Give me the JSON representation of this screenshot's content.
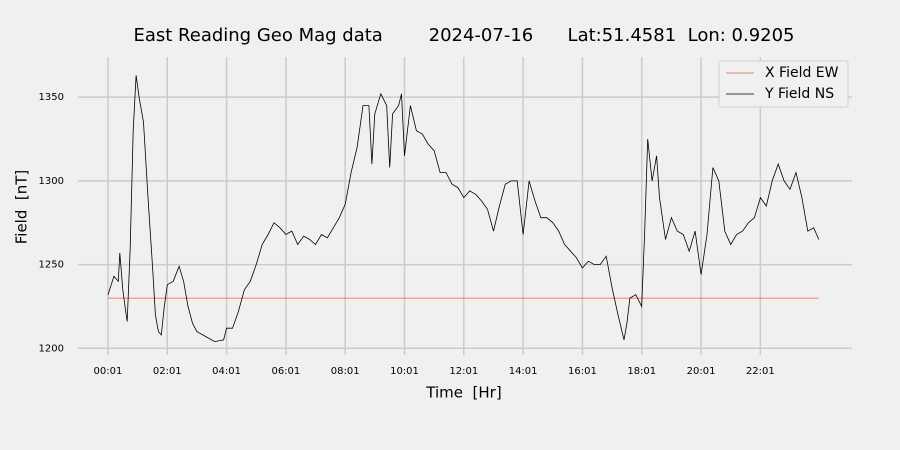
{
  "chart_data": {
    "type": "line",
    "title": "East Reading Geo Mag data        2024-07-16      Lat:51.4581  Lon: 0.9205",
    "x_label": "Time  [Hr]",
    "y_label": "Field  [nT]",
    "xlim": [
      -1.01,
      25.09
    ],
    "ylim": [
      1196,
      1374
    ],
    "xticks": [
      {
        "value": 0,
        "label": "00:01"
      },
      {
        "value": 2,
        "label": "02:01"
      },
      {
        "value": 4,
        "label": "04:01"
      },
      {
        "value": 6,
        "label": "06:01"
      },
      {
        "value": 8,
        "label": "08:01"
      },
      {
        "value": 10,
        "label": "10:01"
      },
      {
        "value": 12,
        "label": "12:01"
      },
      {
        "value": 14,
        "label": "14:01"
      },
      {
        "value": 16,
        "label": "16:01"
      },
      {
        "value": 18,
        "label": "18:01"
      },
      {
        "value": 20,
        "label": "20:01"
      },
      {
        "value": 22,
        "label": "22:01"
      }
    ],
    "yticks": [
      1200,
      1250,
      1300,
      1350
    ],
    "grid": true,
    "legend": "upper right",
    "series": [
      {
        "name": "X Field EW",
        "color": "#e0604f",
        "x": [
          0,
          23.97
        ],
        "values": [
          1230,
          1230
        ]
      },
      {
        "name": "Y Field NS",
        "color": "#000000",
        "x": [
          0,
          0.2,
          0.35,
          0.4,
          0.5,
          0.6,
          0.65,
          0.75,
          0.85,
          0.95,
          1.05,
          1.2,
          1.35,
          1.5,
          1.6,
          1.7,
          1.8,
          1.9,
          2.0,
          2.2,
          2.4,
          2.55,
          2.7,
          2.85,
          3.0,
          3.3,
          3.6,
          3.9,
          4.0,
          4.2,
          4.4,
          4.6,
          4.8,
          5.0,
          5.2,
          5.4,
          5.6,
          5.8,
          6.0,
          6.2,
          6.4,
          6.6,
          6.8,
          7.0,
          7.2,
          7.4,
          7.6,
          7.8,
          8.0,
          8.2,
          8.4,
          8.6,
          8.8,
          8.9,
          9.0,
          9.2,
          9.4,
          9.5,
          9.6,
          9.8,
          9.9,
          10.0,
          10.2,
          10.4,
          10.6,
          10.8,
          11.0,
          11.2,
          11.4,
          11.6,
          11.8,
          12.0,
          12.2,
          12.4,
          12.6,
          12.8,
          13.0,
          13.2,
          13.4,
          13.6,
          13.8,
          14.0,
          14.2,
          14.4,
          14.6,
          14.8,
          15.0,
          15.2,
          15.4,
          15.6,
          15.8,
          16.0,
          16.2,
          16.4,
          16.6,
          16.8,
          17.0,
          17.2,
          17.4,
          17.5,
          17.6,
          17.8,
          18.0,
          18.1,
          18.2,
          18.35,
          18.5,
          18.6,
          18.8,
          19.0,
          19.2,
          19.4,
          19.6,
          19.8,
          20.0,
          20.2,
          20.4,
          20.6,
          20.8,
          21.0,
          21.2,
          21.4,
          21.6,
          21.8,
          22.0,
          22.2,
          22.4,
          22.6,
          22.8,
          23.0,
          23.2,
          23.4,
          23.6,
          23.8,
          23.97
        ],
        "values": [
          1232,
          1243,
          1240,
          1257,
          1235,
          1222,
          1216,
          1260,
          1330,
          1363,
          1350,
          1335,
          1290,
          1250,
          1220,
          1210,
          1208,
          1225,
          1238,
          1240,
          1249,
          1240,
          1225,
          1215,
          1210,
          1207,
          1204,
          1205,
          1212,
          1212,
          1222,
          1235,
          1240,
          1250,
          1262,
          1268,
          1275,
          1272,
          1268,
          1270,
          1262,
          1267,
          1265,
          1262,
          1268,
          1266,
          1272,
          1278,
          1286,
          1305,
          1320,
          1345,
          1345,
          1310,
          1340,
          1352,
          1345,
          1308,
          1340,
          1345,
          1352,
          1315,
          1345,
          1330,
          1328,
          1322,
          1318,
          1305,
          1305,
          1298,
          1296,
          1290,
          1294,
          1292,
          1288,
          1283,
          1270,
          1285,
          1298,
          1300,
          1300,
          1268,
          1300,
          1288,
          1278,
          1278,
          1275,
          1270,
          1262,
          1258,
          1254,
          1248,
          1252,
          1250,
          1250,
          1255,
          1236,
          1220,
          1205,
          1215,
          1230,
          1232,
          1225,
          1270,
          1325,
          1300,
          1315,
          1290,
          1265,
          1278,
          1270,
          1268,
          1258,
          1270,
          1244,
          1268,
          1308,
          1300,
          1270,
          1262,
          1268,
          1270,
          1275,
          1278,
          1290,
          1285,
          1300,
          1310,
          1300,
          1295,
          1305,
          1290,
          1270,
          1272,
          1265
        ]
      }
    ]
  }
}
